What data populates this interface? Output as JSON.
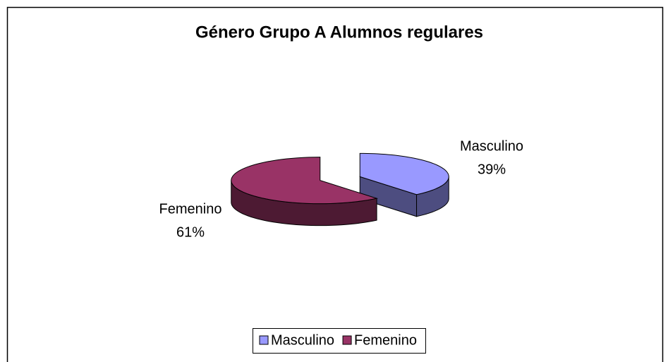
{
  "chart_data": {
    "type": "pie",
    "title": "Género Grupo A Alumnos regulares",
    "categories": [
      "Masculino",
      "Femenino"
    ],
    "values": [
      39,
      61
    ],
    "value_labels": [
      "39%",
      "61%"
    ],
    "colors": [
      "#9999ff",
      "#993366"
    ],
    "legend": "bottom"
  }
}
